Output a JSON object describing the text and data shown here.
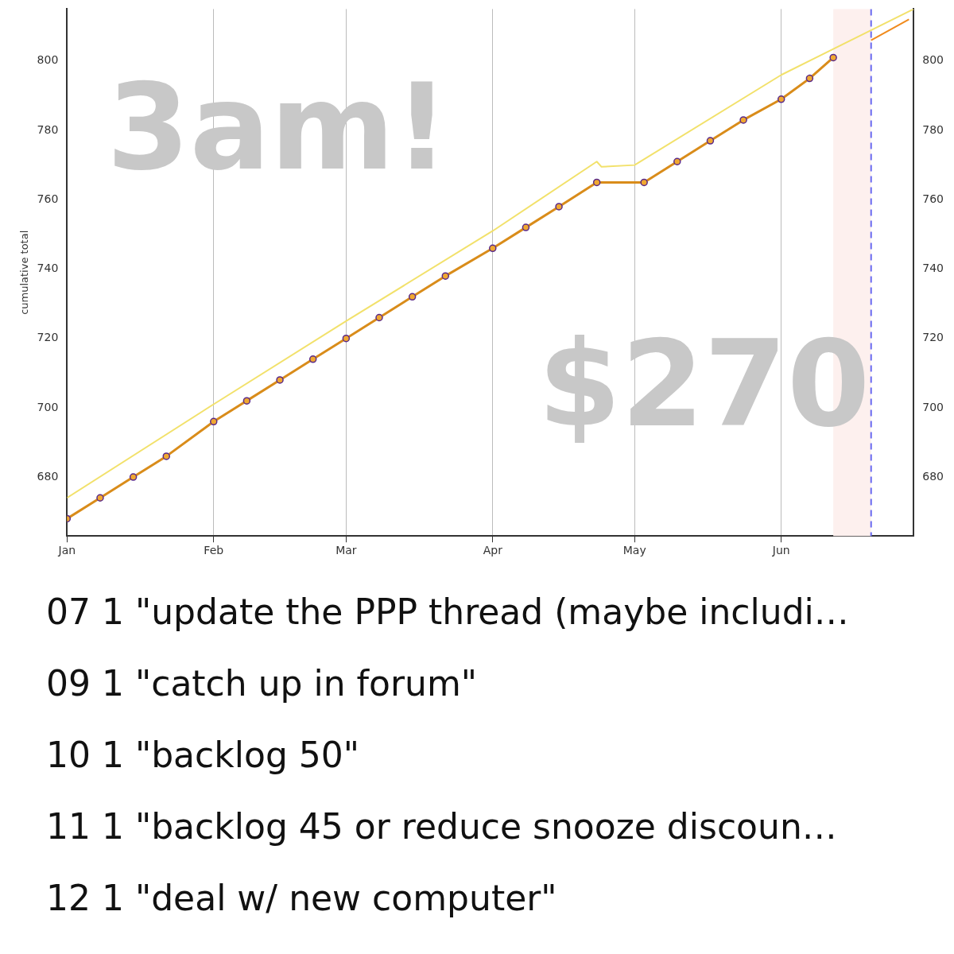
{
  "chart_data": {
    "type": "line",
    "ylabel": "cumulative total",
    "xlim": [
      "--01-01",
      "--06-29"
    ],
    "xticks": [
      {
        "value": "--01-01",
        "label": "Jan"
      },
      {
        "value": "--02-01",
        "label": "Feb"
      },
      {
        "value": "--03-01",
        "label": "Mar"
      },
      {
        "value": "--04-01",
        "label": "Apr"
      },
      {
        "value": "--05-01",
        "label": "May"
      },
      {
        "value": "--06-01",
        "label": "Jun"
      }
    ],
    "ylim": [
      663,
      815
    ],
    "yticks": [
      680,
      700,
      720,
      740,
      760,
      780,
      800
    ],
    "y2lim": [
      663,
      815
    ],
    "y2ticks": [
      680,
      700,
      720,
      740,
      760,
      780,
      800
    ],
    "grid": "x",
    "legend": false,
    "series": [
      {
        "type": "line",
        "color": "#f2e16b",
        "x": [
          "--01-01",
          "--02-01",
          "--03-01",
          "--04-01",
          "--04-23",
          "--04-24",
          "--05-01",
          "--06-01",
          "--06-29"
        ],
        "values": [
          674,
          701,
          725,
          751,
          771,
          769.5,
          770,
          796,
          815
        ]
      },
      {
        "type": "line",
        "color": "#f08a1c",
        "x": [
          "--06-20",
          "--06-28"
        ],
        "values": [
          806,
          812
        ]
      },
      {
        "type": "line",
        "color": "#d98c1a",
        "marker": "circle",
        "x": [
          "--01-01",
          "--01-08",
          "--01-15",
          "--01-22",
          "--02-01",
          "--02-08",
          "--02-15",
          "--02-22",
          "--03-01",
          "--03-08",
          "--03-15",
          "--03-22",
          "--04-01",
          "--04-08",
          "--04-15",
          "--04-23",
          "--05-03",
          "--05-10",
          "--05-17",
          "--05-24",
          "--06-01",
          "--06-07",
          "--06-12"
        ],
        "values": [
          668,
          674,
          680,
          686,
          696,
          702,
          708,
          714,
          720,
          726,
          732,
          738,
          746,
          752,
          758,
          765,
          765,
          771,
          777,
          783,
          789,
          795,
          801
        ]
      }
    ],
    "bands": [
      {
        "axis": "x",
        "from": "--06-12",
        "to": "--06-20",
        "color": "#fdf0ee"
      }
    ],
    "ref_lines": [
      {
        "axis": "x",
        "value": "--06-20",
        "color": "#6a6af0",
        "line_style": "dashed"
      }
    ],
    "annotations": [
      "3am!",
      "$270",
      "07 1 \"update the PPP thread (maybe includi…",
      "09 1 \"catch up in forum\"",
      "10 1 \"backlog 50\"",
      "11 1 \"backlog 45 or reduce snooze discoun…",
      "12 1 \"deal w/ new computer\""
    ]
  }
}
